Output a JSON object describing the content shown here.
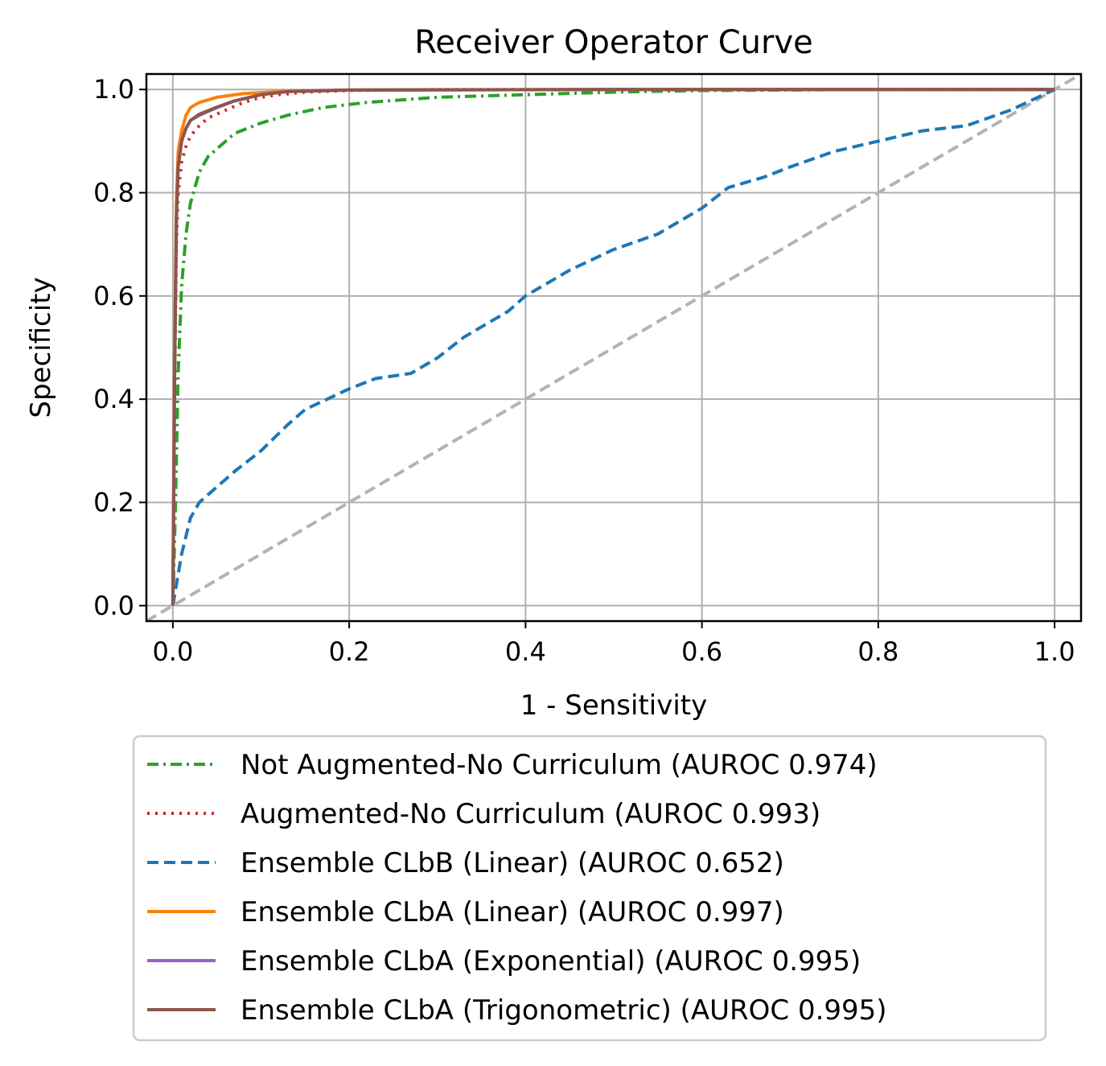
{
  "chart_data": {
    "type": "line",
    "title": "Receiver Operator Curve",
    "xlabel": "1 - Sensitivity",
    "ylabel": "Specificity",
    "xlim": [
      -0.03,
      1.03
    ],
    "ylim": [
      -0.03,
      1.03
    ],
    "xticks": [
      "0.0",
      "0.2",
      "0.4",
      "0.6",
      "0.8",
      "1.0"
    ],
    "yticks": [
      "0.0",
      "0.2",
      "0.4",
      "0.6",
      "0.8",
      "1.0"
    ],
    "grid": true,
    "legend_position": "below",
    "diagonal": {
      "x": [
        0,
        1
      ],
      "y": [
        0,
        1
      ],
      "color": "#b3b3b3",
      "style": "dashed"
    },
    "series": [
      {
        "name": "Not Augmented-No Curriculum (AUROC 0.974)",
        "color": "#2ca02c",
        "style": "dashdot",
        "x": [
          0,
          0.003,
          0.006,
          0.01,
          0.015,
          0.02,
          0.03,
          0.04,
          0.05,
          0.07,
          0.1,
          0.13,
          0.17,
          0.22,
          0.3,
          0.4,
          0.5,
          0.6,
          0.8,
          1.0
        ],
        "y": [
          0,
          0.2,
          0.45,
          0.62,
          0.72,
          0.78,
          0.84,
          0.87,
          0.885,
          0.915,
          0.935,
          0.95,
          0.965,
          0.975,
          0.985,
          0.99,
          0.995,
          0.998,
          1.0,
          1.0
        ]
      },
      {
        "name": "Augmented-No Curriculum (AUROC 0.993)",
        "color": "#d62728",
        "style": "dotted",
        "x": [
          0,
          0.002,
          0.004,
          0.006,
          0.01,
          0.015,
          0.02,
          0.03,
          0.04,
          0.06,
          0.08,
          0.1,
          0.12,
          0.15,
          0.2,
          0.3,
          0.5,
          1.0
        ],
        "y": [
          0,
          0.4,
          0.7,
          0.8,
          0.86,
          0.89,
          0.91,
          0.93,
          0.945,
          0.96,
          0.975,
          0.985,
          0.99,
          0.995,
          0.998,
          1.0,
          1.0,
          1.0
        ]
      },
      {
        "name": "Ensemble CLbB (Linear) (AUROC 0.652)",
        "color": "#1f77b4",
        "style": "dashed",
        "x": [
          0,
          0.01,
          0.02,
          0.03,
          0.05,
          0.07,
          0.1,
          0.13,
          0.15,
          0.2,
          0.23,
          0.27,
          0.3,
          0.33,
          0.36,
          0.38,
          0.4,
          0.45,
          0.5,
          0.55,
          0.6,
          0.63,
          0.67,
          0.7,
          0.75,
          0.8,
          0.85,
          0.9,
          0.95,
          1.0
        ],
        "y": [
          0,
          0.1,
          0.17,
          0.2,
          0.23,
          0.26,
          0.3,
          0.35,
          0.38,
          0.42,
          0.44,
          0.45,
          0.48,
          0.52,
          0.55,
          0.57,
          0.6,
          0.65,
          0.69,
          0.72,
          0.77,
          0.81,
          0.83,
          0.85,
          0.88,
          0.9,
          0.92,
          0.93,
          0.96,
          1.0
        ]
      },
      {
        "name": "Ensemble CLbA (Linear) (AUROC 0.997)",
        "color": "#ff7f0e",
        "style": "solid",
        "x": [
          0,
          0.002,
          0.004,
          0.006,
          0.01,
          0.015,
          0.02,
          0.03,
          0.05,
          0.08,
          0.12,
          0.2,
          0.5,
          1.0
        ],
        "y": [
          0,
          0.5,
          0.78,
          0.88,
          0.92,
          0.95,
          0.965,
          0.975,
          0.985,
          0.992,
          0.996,
          0.999,
          1.0,
          1.0
        ]
      },
      {
        "name": "Ensemble CLbA (Exponential) (AUROC 0.995)",
        "color": "#9467bd",
        "style": "solid",
        "x": [
          0,
          0.002,
          0.004,
          0.006,
          0.01,
          0.015,
          0.02,
          0.03,
          0.05,
          0.07,
          0.1,
          0.13,
          0.2,
          0.5,
          1.0
        ],
        "y": [
          0,
          0.45,
          0.75,
          0.85,
          0.9,
          0.925,
          0.94,
          0.95,
          0.965,
          0.978,
          0.99,
          0.996,
          0.999,
          1.0,
          1.0
        ]
      },
      {
        "name": "Ensemble CLbA (Trigonometric) (AUROC 0.995)",
        "color": "#8c564b",
        "style": "solid",
        "x": [
          0,
          0.002,
          0.004,
          0.006,
          0.01,
          0.015,
          0.02,
          0.03,
          0.05,
          0.07,
          0.1,
          0.13,
          0.2,
          0.5,
          1.0
        ],
        "y": [
          0,
          0.45,
          0.75,
          0.85,
          0.9,
          0.925,
          0.94,
          0.952,
          0.966,
          0.978,
          0.99,
          0.996,
          0.999,
          1.0,
          1.0
        ]
      }
    ]
  }
}
